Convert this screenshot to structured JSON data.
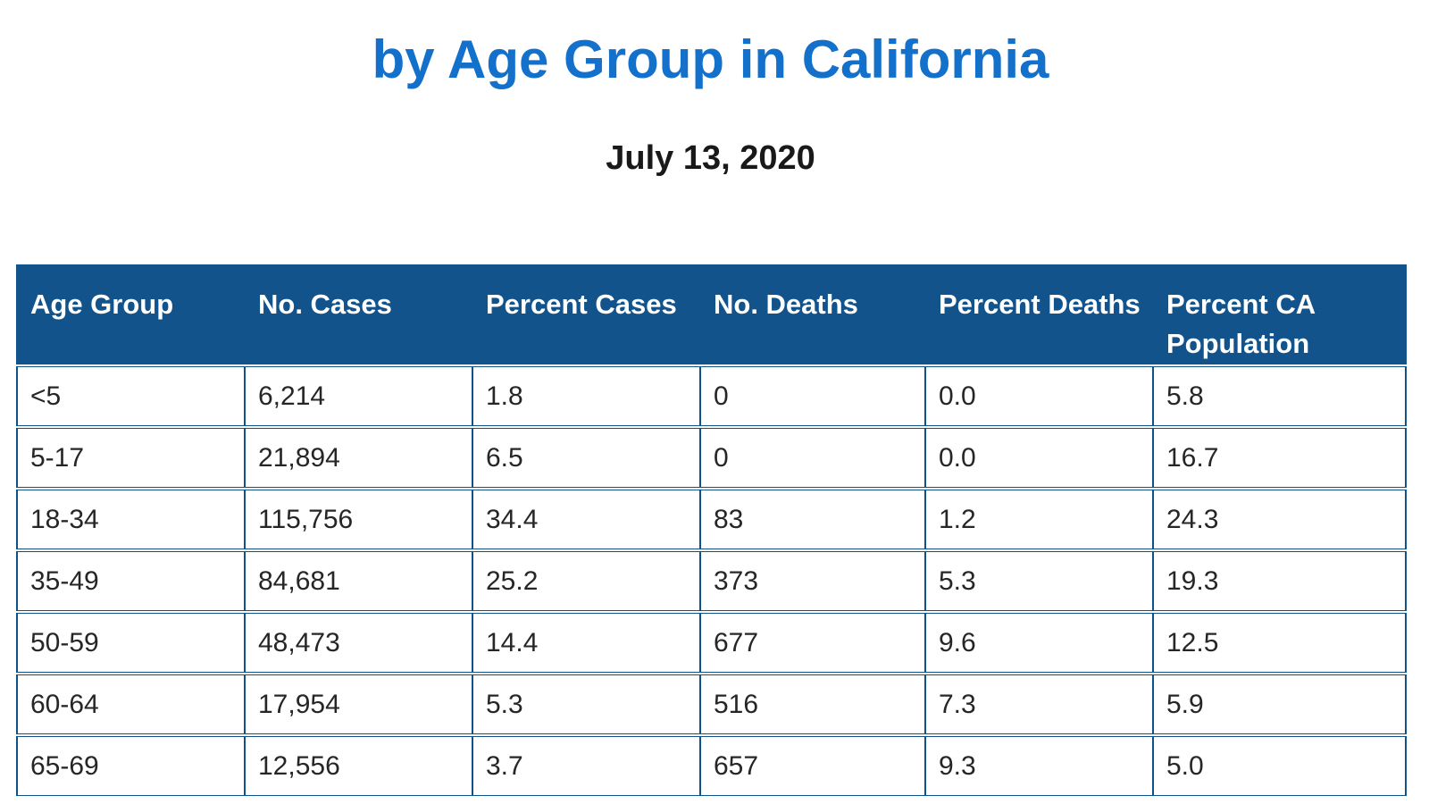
{
  "header": {
    "title": "by Age Group in California",
    "date": "July 13, 2020"
  },
  "colors": {
    "title_blue": "#1371cc",
    "table_header_bg": "#12538c",
    "table_border": "#0f5189",
    "header_text": "#ffffff",
    "body_text": "#262626"
  },
  "table": {
    "columns": [
      "Age Group",
      "No. Cases",
      "Percent Cases",
      "No. Deaths",
      "Percent Deaths",
      "Percent CA Population"
    ],
    "column_keys": [
      "age-group",
      "no-cases",
      "percent-cases",
      "no-deaths",
      "percent-deaths",
      "percent-ca-population"
    ],
    "rows": [
      [
        "<5",
        "6,214",
        "1.8",
        "0",
        "0.0",
        "5.8"
      ],
      [
        "5-17",
        "21,894",
        "6.5",
        "0",
        "0.0",
        "16.7"
      ],
      [
        "18-34",
        "115,756",
        "34.4",
        "83",
        "1.2",
        "24.3"
      ],
      [
        "35-49",
        "84,681",
        "25.2",
        "373",
        "5.3",
        "19.3"
      ],
      [
        "50-59",
        "48,473",
        "14.4",
        "677",
        "9.6",
        "12.5"
      ],
      [
        "60-64",
        "17,954",
        "5.3",
        "516",
        "7.3",
        "5.9"
      ],
      [
        "65-69",
        "12,556",
        "3.7",
        "657",
        "9.3",
        "5.0"
      ]
    ]
  }
}
